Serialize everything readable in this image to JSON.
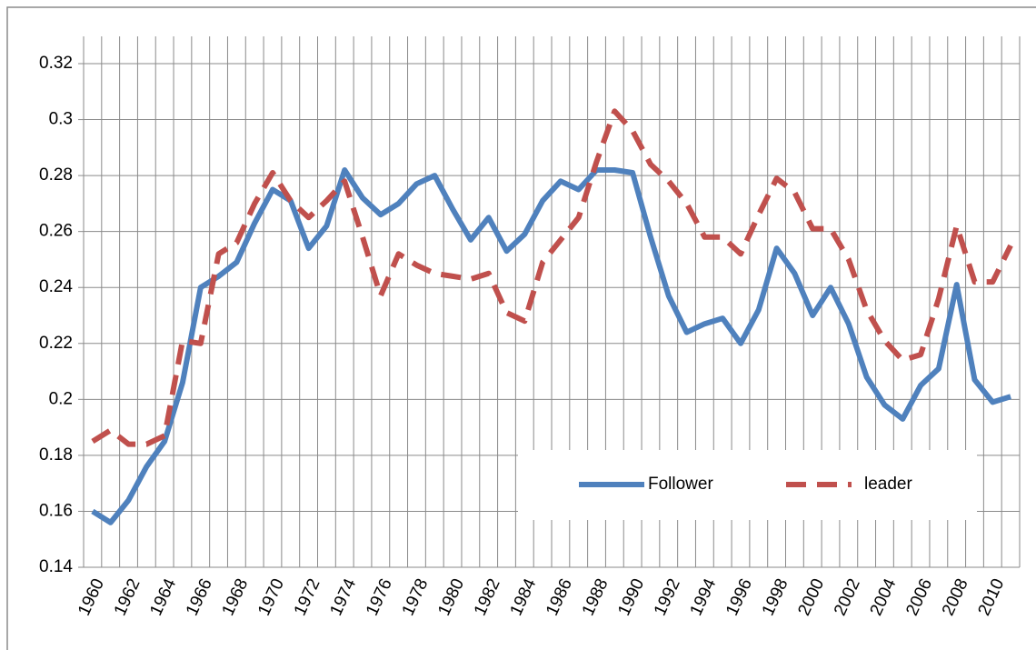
{
  "chart_data": {
    "type": "line",
    "categories": [
      "1960",
      null,
      "1962",
      null,
      "1964",
      null,
      "1966",
      null,
      "1968",
      null,
      "1970",
      null,
      "1972",
      null,
      "1974",
      null,
      "1976",
      null,
      "1978",
      null,
      "1980",
      null,
      "1982",
      null,
      "1984",
      null,
      "1986",
      null,
      "1988",
      null,
      "1990",
      null,
      "1992",
      null,
      "1994",
      null,
      "1996",
      null,
      "1998",
      null,
      "2000",
      null,
      "2002",
      null,
      "2004",
      null,
      "2006",
      null,
      "2008",
      null,
      "2010",
      null
    ],
    "series": [
      {
        "name": "Follower",
        "color": "#4f81bd",
        "dash": false,
        "values": [
          0.16,
          0.156,
          0.164,
          0.176,
          0.185,
          0.206,
          0.24,
          0.244,
          0.249,
          0.263,
          0.275,
          0.271,
          0.254,
          0.262,
          0.282,
          0.272,
          0.266,
          0.27,
          0.277,
          0.28,
          0.268,
          0.257,
          0.265,
          0.253,
          0.259,
          0.271,
          0.278,
          0.275,
          0.282,
          0.282,
          0.281,
          0.258,
          0.237,
          0.224,
          0.227,
          0.229,
          0.22,
          0.232,
          0.254,
          0.245,
          0.23,
          0.24,
          0.227,
          0.208,
          0.198,
          0.193,
          0.205,
          0.211,
          0.241,
          0.207,
          0.199,
          0.201
        ]
      },
      {
        "name": "leader",
        "color": "#c0504d",
        "dash": true,
        "values": [
          0.185,
          0.189,
          0.184,
          0.184,
          0.187,
          0.221,
          0.22,
          0.252,
          0.256,
          0.27,
          0.281,
          0.271,
          0.265,
          0.271,
          0.278,
          0.258,
          0.237,
          0.252,
          0.248,
          0.245,
          0.244,
          0.243,
          0.245,
          0.231,
          0.228,
          0.249,
          0.257,
          0.265,
          0.285,
          0.303,
          0.296,
          0.284,
          0.278,
          0.27,
          0.258,
          0.258,
          0.252,
          0.266,
          0.279,
          0.274,
          0.261,
          0.261,
          0.25,
          0.232,
          0.221,
          0.214,
          0.216,
          0.236,
          0.262,
          0.242,
          0.242,
          0.255
        ]
      }
    ],
    "ylim": [
      0.14,
      0.32
    ],
    "yticks": [
      0.14,
      0.16,
      0.18,
      0.2,
      0.22,
      0.24,
      0.26,
      0.28,
      0.3,
      0.32
    ],
    "grid": true,
    "legend": "lower-right"
  }
}
